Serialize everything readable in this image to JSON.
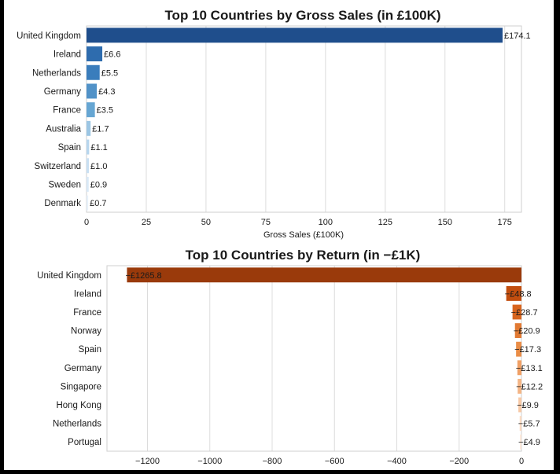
{
  "chart_data": [
    {
      "type": "bar",
      "orientation": "horizontal",
      "title": "Top 10 Countries by Gross Sales (in £100K)",
      "xlabel": "Gross Sales (£100K)",
      "ylabel": "",
      "categories": [
        "United Kingdom",
        "Ireland",
        "Netherlands",
        "Germany",
        "France",
        "Australia",
        "Spain",
        "Switzerland",
        "Sweden",
        "Denmark"
      ],
      "values": [
        174.1,
        6.6,
        5.5,
        4.3,
        3.5,
        1.7,
        1.1,
        1.0,
        0.9,
        0.7
      ],
      "data_labels": [
        "£174.1",
        "£6.6",
        "£5.5",
        "£4.3",
        "£3.5",
        "£1.7",
        "£1.1",
        "£1.0",
        "£0.9",
        "£0.7"
      ],
      "xlim": [
        0,
        182
      ],
      "xticks": [
        0,
        25,
        50,
        75,
        100,
        125,
        150,
        175
      ],
      "xtick_labels": [
        "0",
        "25",
        "50",
        "75",
        "100",
        "125",
        "150",
        "175"
      ],
      "grid": true,
      "colors": [
        "#1f4e8c",
        "#2e6cae",
        "#3a7dbc",
        "#5192c8",
        "#66a6d3",
        "#9cc6e4",
        "#b7d6ee",
        "#c9e0f3",
        "#d9e9f7",
        "#e7f1fa"
      ]
    },
    {
      "type": "bar",
      "orientation": "horizontal",
      "title": "Top 10 Countries by Return  (in −£1K)",
      "xlabel": "",
      "ylabel": "",
      "categories": [
        "United Kingdom",
        "Ireland",
        "France",
        "Norway",
        "Spain",
        "Germany",
        "Singapore",
        "Hong Kong",
        "Netherlands",
        "Portugal"
      ],
      "values": [
        -1265.8,
        -48.8,
        -28.7,
        -20.9,
        -17.3,
        -13.1,
        -12.2,
        -9.9,
        -5.7,
        -4.9
      ],
      "data_labels": [
        "−£1265.8",
        "−£48.8",
        "−£28.7",
        "−£20.9",
        "−£17.3",
        "−£13.1",
        "−£12.2",
        "−£9.9",
        "−£5.7",
        "−£4.9"
      ],
      "xlim": [
        -1330,
        0
      ],
      "xticks": [
        -1200,
        -1000,
        -800,
        -600,
        -400,
        -200,
        0
      ],
      "xtick_labels": [
        "−1200",
        "−1000",
        "−800",
        "−600",
        "−400",
        "−200",
        "0"
      ],
      "grid": true,
      "colors": [
        "#9a3a0b",
        "#c24e0f",
        "#d8651e",
        "#e27a33",
        "#ea8d47",
        "#f0a065",
        "#f4b585",
        "#f7c9a6",
        "#fadbc3",
        "#fce9da"
      ]
    }
  ]
}
